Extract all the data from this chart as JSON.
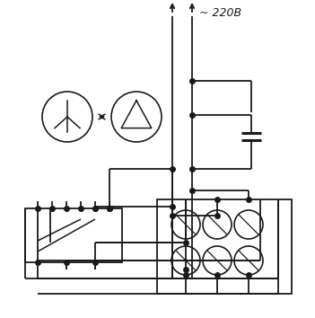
{
  "bg_color": "#ffffff",
  "line_color": "#1a1a1a",
  "lw": 1.3,
  "dot_r": 4,
  "title": "~ 220B"
}
